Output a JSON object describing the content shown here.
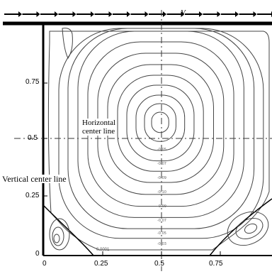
{
  "diagram": {
    "lid_velocity_label": "V",
    "y_tick_labels": [
      "0.75",
      "0.5",
      "0.25",
      "0"
    ],
    "x_tick_labels": [
      "0",
      "0.25",
      "0.5",
      "0.75"
    ],
    "horizontal_label": "Horizontal\ncenter line",
    "vertical_label": "Vertical center line",
    "contour_values": [
      "-0.05",
      "-0.07",
      "-0.09",
      "-0.10",
      "-0.09",
      "-0.07",
      "-0.05",
      "-0.03"
    ],
    "corner_label": "0.0001"
  },
  "colors": {
    "ink": "#000000",
    "contour": "#444444",
    "dash": "#333333"
  }
}
